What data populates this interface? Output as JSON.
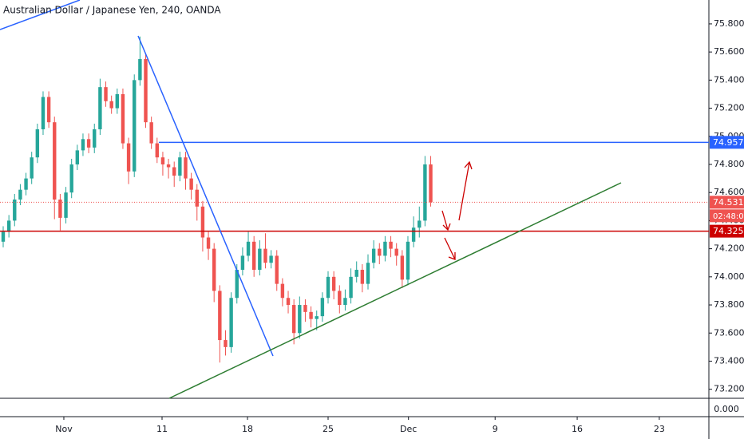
{
  "chart_data": {
    "type": "candlestick",
    "title": "Australian Dollar / Japanese Yen, 240, OANDA",
    "up_color": "#26a69a",
    "down_color": "#ef5350",
    "candles": [
      [
        74.25,
        74.36,
        74.21,
        74.32
      ],
      [
        74.32,
        74.44,
        74.28,
        74.4
      ],
      [
        74.4,
        74.59,
        74.36,
        74.55
      ],
      [
        74.55,
        74.66,
        74.51,
        74.62
      ],
      [
        74.62,
        74.74,
        74.58,
        74.7
      ],
      [
        74.7,
        74.89,
        74.66,
        74.85
      ],
      [
        74.85,
        75.09,
        74.81,
        75.05
      ],
      [
        75.05,
        75.32,
        75.01,
        75.28
      ],
      [
        75.28,
        75.32,
        75.06,
        75.1
      ],
      [
        75.1,
        75.14,
        74.41,
        74.55
      ],
      [
        74.55,
        74.59,
        74.33,
        74.42
      ],
      [
        74.42,
        74.64,
        74.38,
        74.6
      ],
      [
        74.6,
        74.84,
        74.56,
        74.8
      ],
      [
        74.8,
        74.94,
        74.76,
        74.9
      ],
      [
        74.9,
        75.02,
        74.86,
        74.98
      ],
      [
        74.98,
        75.02,
        74.88,
        74.92
      ],
      [
        74.92,
        75.09,
        74.88,
        75.05
      ],
      [
        75.05,
        75.41,
        75.01,
        75.35
      ],
      [
        75.35,
        75.39,
        75.21,
        75.25
      ],
      [
        75.25,
        75.29,
        75.16,
        75.2
      ],
      [
        75.2,
        75.34,
        75.16,
        75.3
      ],
      [
        75.3,
        75.34,
        74.91,
        74.95
      ],
      [
        74.95,
        74.99,
        74.66,
        74.75
      ],
      [
        74.75,
        75.44,
        74.71,
        75.4
      ],
      [
        75.4,
        75.71,
        75.36,
        75.55
      ],
      [
        75.55,
        75.59,
        75.06,
        75.1
      ],
      [
        75.1,
        75.14,
        74.91,
        74.95
      ],
      [
        74.95,
        74.99,
        74.81,
        74.85
      ],
      [
        74.85,
        74.89,
        74.72,
        74.8
      ],
      [
        74.8,
        74.84,
        74.7,
        74.78
      ],
      [
        74.78,
        74.82,
        74.64,
        74.72
      ],
      [
        74.72,
        74.89,
        74.68,
        74.85
      ],
      [
        74.85,
        74.89,
        74.62,
        74.7
      ],
      [
        74.7,
        74.74,
        74.55,
        74.62
      ],
      [
        74.62,
        74.66,
        74.4,
        74.5
      ],
      [
        74.5,
        74.54,
        74.18,
        74.28
      ],
      [
        74.28,
        74.32,
        74.12,
        74.2
      ],
      [
        74.2,
        74.24,
        73.82,
        73.9
      ],
      [
        73.9,
        73.94,
        73.39,
        73.55
      ],
      [
        73.55,
        73.62,
        73.44,
        73.5
      ],
      [
        73.5,
        73.89,
        73.46,
        73.85
      ],
      [
        73.85,
        74.09,
        73.81,
        74.05
      ],
      [
        74.05,
        74.21,
        74.01,
        74.15
      ],
      [
        74.15,
        74.32,
        74.11,
        74.25
      ],
      [
        74.25,
        74.29,
        74.0,
        74.05
      ],
      [
        74.05,
        74.26,
        74.01,
        74.2
      ],
      [
        74.2,
        74.31,
        74.06,
        74.1
      ],
      [
        74.1,
        74.19,
        74.06,
        74.15
      ],
      [
        74.15,
        74.19,
        73.9,
        73.95
      ],
      [
        73.95,
        73.99,
        73.79,
        73.85
      ],
      [
        73.85,
        73.9,
        73.74,
        73.8
      ],
      [
        73.8,
        73.84,
        73.52,
        73.6
      ],
      [
        73.6,
        73.86,
        73.56,
        73.8
      ],
      [
        73.8,
        73.84,
        73.68,
        73.75
      ],
      [
        73.75,
        73.79,
        73.64,
        73.7
      ],
      [
        73.7,
        73.76,
        73.62,
        73.72
      ],
      [
        73.72,
        73.89,
        73.68,
        73.85
      ],
      [
        73.85,
        74.04,
        73.81,
        74.0
      ],
      [
        74.0,
        74.04,
        73.84,
        73.9
      ],
      [
        73.9,
        73.94,
        73.74,
        73.8
      ],
      [
        73.8,
        73.91,
        73.76,
        73.85
      ],
      [
        73.85,
        74.06,
        73.81,
        74.0
      ],
      [
        74.0,
        74.11,
        73.96,
        74.05
      ],
      [
        74.05,
        74.09,
        73.89,
        73.95
      ],
      [
        73.95,
        74.16,
        73.91,
        74.1
      ],
      [
        74.1,
        74.26,
        74.06,
        74.2
      ],
      [
        74.2,
        74.24,
        74.09,
        74.15
      ],
      [
        74.15,
        74.29,
        74.11,
        74.25
      ],
      [
        74.25,
        74.29,
        74.14,
        74.2
      ],
      [
        74.2,
        74.24,
        74.08,
        74.15
      ],
      [
        74.15,
        74.19,
        73.92,
        73.98
      ],
      [
        73.98,
        74.29,
        73.94,
        74.25
      ],
      [
        74.25,
        74.43,
        74.21,
        74.35
      ],
      [
        74.35,
        74.5,
        74.28,
        74.4
      ],
      [
        74.4,
        74.86,
        74.36,
        74.8
      ],
      [
        74.8,
        74.86,
        74.5,
        74.531
      ]
    ],
    "xlim": [
      -0.56,
      123.8
    ],
    "xticks": [
      {
        "value": 10.64,
        "label": "Nov"
      },
      {
        "value": 27.87,
        "label": "11"
      },
      {
        "value": 42.86,
        "label": "18"
      },
      {
        "value": 57.0,
        "label": "25"
      },
      {
        "value": 71.1,
        "label": "Dec"
      },
      {
        "value": 86.3,
        "label": "9"
      },
      {
        "value": 100.7,
        "label": "16"
      },
      {
        "value": 115.1,
        "label": "23"
      }
    ],
    "ylim": [
      73.13,
      75.97
    ],
    "yticks": [
      {
        "value": 73.2,
        "label": "73.200"
      },
      {
        "value": 73.4,
        "label": "73.400"
      },
      {
        "value": 73.6,
        "label": "73.600"
      },
      {
        "value": 73.8,
        "label": "73.800"
      },
      {
        "value": 74.0,
        "label": "74.000"
      },
      {
        "value": 74.2,
        "label": "74.200"
      },
      {
        "value": 74.4,
        "label": "74.400"
      },
      {
        "value": 74.6,
        "label": "74.600"
      },
      {
        "value": 74.8,
        "label": "74.800"
      },
      {
        "value": 75.0,
        "label": "75.000"
      },
      {
        "value": 75.2,
        "label": "75.200"
      },
      {
        "value": 75.4,
        "label": "75.400"
      },
      {
        "value": 75.6,
        "label": "75.600"
      },
      {
        "value": 75.8,
        "label": "75.800"
      }
    ],
    "levels": [
      {
        "value": 74.957,
        "color": "#2962ff",
        "style": "solid"
      },
      {
        "value": 74.325,
        "color": "#cc0000",
        "style": "solid"
      },
      {
        "value": 74.531,
        "color": "#ef5350",
        "style": "dotted"
      }
    ],
    "countdown": "02:48:02",
    "lower_pane_label": "0.000"
  }
}
